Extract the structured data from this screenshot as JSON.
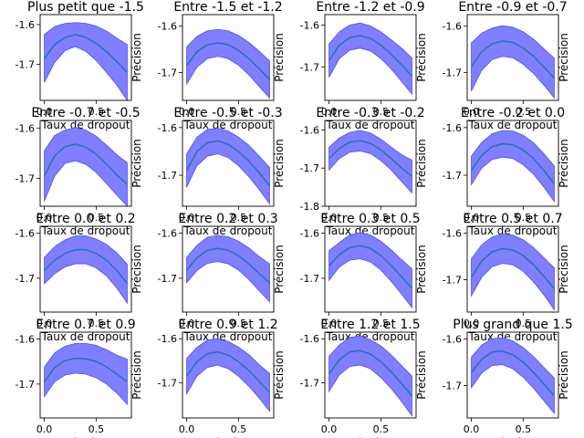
{
  "chart_data": {
    "type": "line",
    "xlabel": "Taux de dropout",
    "ylabel": "Précision",
    "xlim": [
      -0.04,
      0.84
    ],
    "x_ticks": [
      "0.0",
      "0.5"
    ],
    "x_tick_values": [
      0.0,
      0.5
    ],
    "line_color": "#2c6fb4",
    "band_color": "#7f7fff",
    "band_edge_color": "#4d4df2",
    "panels": [
      {
        "title": "Plus petit que -1.5",
        "ylim": [
          -1.79,
          -1.575
        ],
        "y_ticks": [
          "-1.6",
          "-1.7"
        ],
        "y_tick_values": [
          -1.6,
          -1.7
        ],
        "x": [
          0.0,
          0.1,
          0.2,
          0.3,
          0.4,
          0.5,
          0.6,
          0.7,
          0.8
        ],
        "mean": [
          -1.685,
          -1.65,
          -1.632,
          -1.625,
          -1.632,
          -1.647,
          -1.668,
          -1.693,
          -1.72
        ],
        "lower": [
          -1.745,
          -1.695,
          -1.665,
          -1.655,
          -1.667,
          -1.69,
          -1.72,
          -1.752,
          -1.79
        ],
        "upper": [
          -1.625,
          -1.605,
          -1.597,
          -1.595,
          -1.597,
          -1.604,
          -1.616,
          -1.634,
          -1.65
        ]
      },
      {
        "title": "Entre -1.5 et -1.2",
        "ylim": [
          -1.76,
          -1.575
        ],
        "y_ticks": [
          "-1.6",
          "-1.7"
        ],
        "y_tick_values": [
          -1.6,
          -1.7
        ],
        "x": [
          0.0,
          0.1,
          0.2,
          0.3,
          0.4,
          0.5,
          0.6,
          0.7,
          0.8
        ],
        "mean": [
          -1.685,
          -1.655,
          -1.64,
          -1.636,
          -1.64,
          -1.652,
          -1.67,
          -1.692,
          -1.715
        ],
        "lower": [
          -1.725,
          -1.688,
          -1.67,
          -1.665,
          -1.67,
          -1.684,
          -1.705,
          -1.73,
          -1.755
        ],
        "upper": [
          -1.645,
          -1.622,
          -1.61,
          -1.607,
          -1.61,
          -1.62,
          -1.635,
          -1.654,
          -1.675
        ]
      },
      {
        "title": "Entre -1.2 et -0.9",
        "ylim": [
          -1.78,
          -1.575
        ],
        "y_ticks": [
          "-1.6",
          "-1.7"
        ],
        "y_tick_values": [
          -1.6,
          -1.7
        ],
        "x": [
          0.0,
          0.1,
          0.2,
          0.3,
          0.4,
          0.5,
          0.6,
          0.7,
          0.8
        ],
        "mean": [
          -1.685,
          -1.648,
          -1.63,
          -1.625,
          -1.632,
          -1.648,
          -1.67,
          -1.695,
          -1.722
        ],
        "lower": [
          -1.725,
          -1.68,
          -1.66,
          -1.655,
          -1.662,
          -1.68,
          -1.705,
          -1.735,
          -1.765
        ],
        "upper": [
          -1.645,
          -1.616,
          -1.6,
          -1.595,
          -1.602,
          -1.616,
          -1.635,
          -1.655,
          -1.679
        ]
      },
      {
        "title": "Entre -0.9 et -0.7",
        "ylim": [
          -1.76,
          -1.575
        ],
        "y_ticks": [
          "-1.6",
          "-1.7"
        ],
        "y_tick_values": [
          -1.6,
          -1.7
        ],
        "x": [
          0.0,
          0.1,
          0.2,
          0.3,
          0.4,
          0.5,
          0.6,
          0.7,
          0.8
        ],
        "mean": [
          -1.688,
          -1.655,
          -1.638,
          -1.632,
          -1.635,
          -1.647,
          -1.665,
          -1.688,
          -1.712
        ],
        "lower": [
          -1.74,
          -1.695,
          -1.672,
          -1.665,
          -1.668,
          -1.682,
          -1.702,
          -1.727,
          -1.755
        ],
        "upper": [
          -1.636,
          -1.615,
          -1.604,
          -1.599,
          -1.602,
          -1.612,
          -1.628,
          -1.649,
          -1.669
        ]
      },
      {
        "title": "Entre -0.7 et -0.5",
        "ylim": [
          -1.755,
          -1.585
        ],
        "y_ticks": [
          "-1.6",
          "-1.7"
        ],
        "y_tick_values": [
          -1.6,
          -1.7
        ],
        "x": [
          0.0,
          0.1,
          0.2,
          0.3,
          0.4,
          0.5,
          0.6,
          0.7,
          0.8
        ],
        "mean": [
          -1.695,
          -1.655,
          -1.637,
          -1.632,
          -1.638,
          -1.652,
          -1.672,
          -1.693,
          -1.712
        ],
        "lower": [
          -1.745,
          -1.695,
          -1.67,
          -1.665,
          -1.672,
          -1.688,
          -1.71,
          -1.733,
          -1.755
        ],
        "upper": [
          -1.645,
          -1.615,
          -1.604,
          -1.599,
          -1.604,
          -1.616,
          -1.634,
          -1.653,
          -1.669
        ]
      },
      {
        "title": "Entre -0.5 et -0.3",
        "ylim": [
          -1.765,
          -1.585
        ],
        "y_ticks": [
          "-1.6",
          "-1.7"
        ],
        "y_tick_values": [
          -1.6,
          -1.7
        ],
        "x": [
          0.0,
          0.1,
          0.2,
          0.3,
          0.4,
          0.5,
          0.6,
          0.7,
          0.8
        ],
        "mean": [
          -1.69,
          -1.65,
          -1.632,
          -1.628,
          -1.635,
          -1.65,
          -1.67,
          -1.695,
          -1.722
        ],
        "lower": [
          -1.725,
          -1.68,
          -1.66,
          -1.655,
          -1.663,
          -1.68,
          -1.703,
          -1.73,
          -1.76
        ],
        "upper": [
          -1.655,
          -1.62,
          -1.604,
          -1.601,
          -1.607,
          -1.62,
          -1.637,
          -1.66,
          -1.684
        ]
      },
      {
        "title": "Entre -0.3 et -0.2",
        "ylim": [
          -1.8,
          -1.575
        ],
        "y_ticks": [
          "-1.6",
          "-1.7",
          "-1.8"
        ],
        "y_tick_values": [
          -1.6,
          -1.7,
          -1.8
        ],
        "x": [
          0.0,
          0.1,
          0.2,
          0.3,
          0.4,
          0.5,
          0.6,
          0.7,
          0.8
        ],
        "mean": [
          -1.675,
          -1.648,
          -1.632,
          -1.628,
          -1.635,
          -1.652,
          -1.675,
          -1.7,
          -1.722
        ],
        "lower": [
          -1.705,
          -1.675,
          -1.658,
          -1.655,
          -1.662,
          -1.68,
          -1.705,
          -1.735,
          -1.765
        ],
        "upper": [
          -1.645,
          -1.621,
          -1.606,
          -1.601,
          -1.608,
          -1.624,
          -1.645,
          -1.665,
          -1.679
        ]
      },
      {
        "title": "Entre -0.2 et 0.0",
        "ylim": [
          -1.765,
          -1.585
        ],
        "y_ticks": [
          "-1.6",
          "-1.7"
        ],
        "y_tick_values": [
          -1.6,
          -1.7
        ],
        "x": [
          0.0,
          0.1,
          0.2,
          0.3,
          0.4,
          0.5,
          0.6,
          0.7,
          0.8
        ],
        "mean": [
          -1.69,
          -1.658,
          -1.64,
          -1.634,
          -1.636,
          -1.647,
          -1.665,
          -1.69,
          -1.718
        ],
        "lower": [
          -1.72,
          -1.685,
          -1.667,
          -1.662,
          -1.665,
          -1.678,
          -1.698,
          -1.725,
          -1.755
        ],
        "upper": [
          -1.66,
          -1.631,
          -1.613,
          -1.606,
          -1.607,
          -1.616,
          -1.632,
          -1.655,
          -1.681
        ]
      },
      {
        "title": "Entre 0.0 et 0.2",
        "ylim": [
          -1.775,
          -1.585
        ],
        "y_ticks": [
          "-1.6",
          "-1.7"
        ],
        "y_tick_values": [
          -1.6,
          -1.7
        ],
        "x": [
          0.0,
          0.1,
          0.2,
          0.3,
          0.4,
          0.5,
          0.6,
          0.7,
          0.8
        ],
        "mean": [
          -1.683,
          -1.66,
          -1.645,
          -1.637,
          -1.637,
          -1.645,
          -1.66,
          -1.683,
          -1.712
        ],
        "lower": [
          -1.712,
          -1.69,
          -1.675,
          -1.668,
          -1.668,
          -1.677,
          -1.695,
          -1.722,
          -1.755
        ],
        "upper": [
          -1.654,
          -1.63,
          -1.615,
          -1.606,
          -1.606,
          -1.613,
          -1.625,
          -1.644,
          -1.669
        ]
      },
      {
        "title": "Entre 0.2 et 0.3",
        "ylim": [
          -1.775,
          -1.585
        ],
        "y_ticks": [
          "-1.6",
          "-1.7"
        ],
        "y_tick_values": [
          -1.6,
          -1.7
        ],
        "x": [
          0.0,
          0.1,
          0.2,
          0.3,
          0.4,
          0.5,
          0.6,
          0.7,
          0.8
        ],
        "mean": [
          -1.682,
          -1.655,
          -1.638,
          -1.634,
          -1.638,
          -1.65,
          -1.668,
          -1.69,
          -1.71
        ],
        "lower": [
          -1.71,
          -1.683,
          -1.667,
          -1.663,
          -1.668,
          -1.682,
          -1.703,
          -1.728,
          -1.752
        ],
        "upper": [
          -1.654,
          -1.627,
          -1.609,
          -1.605,
          -1.608,
          -1.618,
          -1.633,
          -1.652,
          -1.668
        ]
      },
      {
        "title": "Entre 0.3 et 0.5",
        "ylim": [
          -1.775,
          -1.585
        ],
        "y_ticks": [
          "-1.6",
          "-1.7"
        ],
        "y_tick_values": [
          -1.6,
          -1.7
        ],
        "x": [
          0.0,
          0.1,
          0.2,
          0.3,
          0.4,
          0.5,
          0.6,
          0.7,
          0.8
        ],
        "mean": [
          -1.672,
          -1.648,
          -1.632,
          -1.628,
          -1.634,
          -1.65,
          -1.672,
          -1.697,
          -1.722
        ],
        "lower": [
          -1.705,
          -1.675,
          -1.66,
          -1.657,
          -1.664,
          -1.682,
          -1.707,
          -1.735,
          -1.765
        ],
        "upper": [
          -1.639,
          -1.621,
          -1.604,
          -1.599,
          -1.604,
          -1.618,
          -1.637,
          -1.659,
          -1.679
        ]
      },
      {
        "title": "Entre 0.5 et 0.7",
        "ylim": [
          -1.77,
          -1.585
        ],
        "y_ticks": [
          "-1.6",
          "-1.7"
        ],
        "y_tick_values": [
          -1.6,
          -1.7
        ],
        "x": [
          0.0,
          0.1,
          0.2,
          0.3,
          0.4,
          0.5,
          0.6,
          0.7,
          0.8
        ],
        "mean": [
          -1.695,
          -1.66,
          -1.64,
          -1.633,
          -1.636,
          -1.648,
          -1.668,
          -1.693,
          -1.72
        ],
        "lower": [
          -1.735,
          -1.695,
          -1.672,
          -1.665,
          -1.668,
          -1.682,
          -1.705,
          -1.733,
          -1.765
        ],
        "upper": [
          -1.655,
          -1.625,
          -1.608,
          -1.601,
          -1.604,
          -1.614,
          -1.631,
          -1.653,
          -1.675
        ]
      },
      {
        "title": "Entre 0.7 et 0.9",
        "ylim": [
          -1.775,
          -1.585
        ],
        "y_ticks": [
          "-1.6",
          "-1.7"
        ],
        "y_tick_values": [
          -1.6,
          -1.7
        ],
        "x": [
          0.0,
          0.1,
          0.2,
          0.3,
          0.4,
          0.5,
          0.6,
          0.7,
          0.8
        ],
        "mean": [
          -1.695,
          -1.663,
          -1.648,
          -1.643,
          -1.644,
          -1.65,
          -1.662,
          -1.678,
          -1.695
        ],
        "lower": [
          -1.728,
          -1.695,
          -1.68,
          -1.676,
          -1.678,
          -1.686,
          -1.7,
          -1.72,
          -1.745
        ],
        "upper": [
          -1.662,
          -1.631,
          -1.616,
          -1.61,
          -1.61,
          -1.614,
          -1.624,
          -1.636,
          -1.645
        ]
      },
      {
        "title": "Entre 0.9 et 1.2",
        "ylim": [
          -1.78,
          -1.585
        ],
        "y_ticks": [
          "-1.6",
          "-1.7"
        ],
        "y_tick_values": [
          -1.6,
          -1.7
        ],
        "x": [
          0.0,
          0.1,
          0.2,
          0.3,
          0.4,
          0.5,
          0.6,
          0.7,
          0.8
        ],
        "mean": [
          -1.685,
          -1.652,
          -1.634,
          -1.63,
          -1.637,
          -1.652,
          -1.672,
          -1.697,
          -1.722
        ],
        "lower": [
          -1.725,
          -1.685,
          -1.665,
          -1.66,
          -1.668,
          -1.685,
          -1.708,
          -1.735,
          -1.765
        ],
        "upper": [
          -1.645,
          -1.619,
          -1.603,
          -1.6,
          -1.606,
          -1.619,
          -1.636,
          -1.659,
          -1.679
        ]
      },
      {
        "title": "Entre 1.2 et 1.5",
        "ylim": [
          -1.78,
          -1.585
        ],
        "y_ticks": [
          "-1.6",
          "-1.7"
        ],
        "y_tick_values": [
          -1.6,
          -1.7
        ],
        "x": [
          0.0,
          0.1,
          0.2,
          0.3,
          0.4,
          0.5,
          0.6,
          0.7,
          0.8
        ],
        "mean": [
          -1.68,
          -1.648,
          -1.63,
          -1.627,
          -1.635,
          -1.652,
          -1.675,
          -1.702,
          -1.73
        ],
        "lower": [
          -1.72,
          -1.682,
          -1.663,
          -1.66,
          -1.668,
          -1.688,
          -1.713,
          -1.743,
          -1.775
        ],
        "upper": [
          -1.64,
          -1.614,
          -1.597,
          -1.594,
          -1.602,
          -1.616,
          -1.637,
          -1.661,
          -1.685
        ]
      },
      {
        "title": "Plus grand que 1.5",
        "ylim": [
          -1.77,
          -1.585
        ],
        "y_ticks": [
          "-1.6",
          "-1.7"
        ],
        "y_tick_values": [
          -1.6,
          -1.7
        ],
        "x": [
          0.0,
          0.1,
          0.2,
          0.3,
          0.4,
          0.5,
          0.6,
          0.7,
          0.8
        ],
        "mean": [
          -1.672,
          -1.643,
          -1.628,
          -1.626,
          -1.634,
          -1.65,
          -1.672,
          -1.697,
          -1.722
        ],
        "lower": [
          -1.705,
          -1.673,
          -1.657,
          -1.655,
          -1.664,
          -1.682,
          -1.706,
          -1.733,
          -1.76
        ],
        "upper": [
          -1.639,
          -1.613,
          -1.599,
          -1.597,
          -1.604,
          -1.618,
          -1.638,
          -1.661,
          -1.684
        ]
      }
    ]
  }
}
